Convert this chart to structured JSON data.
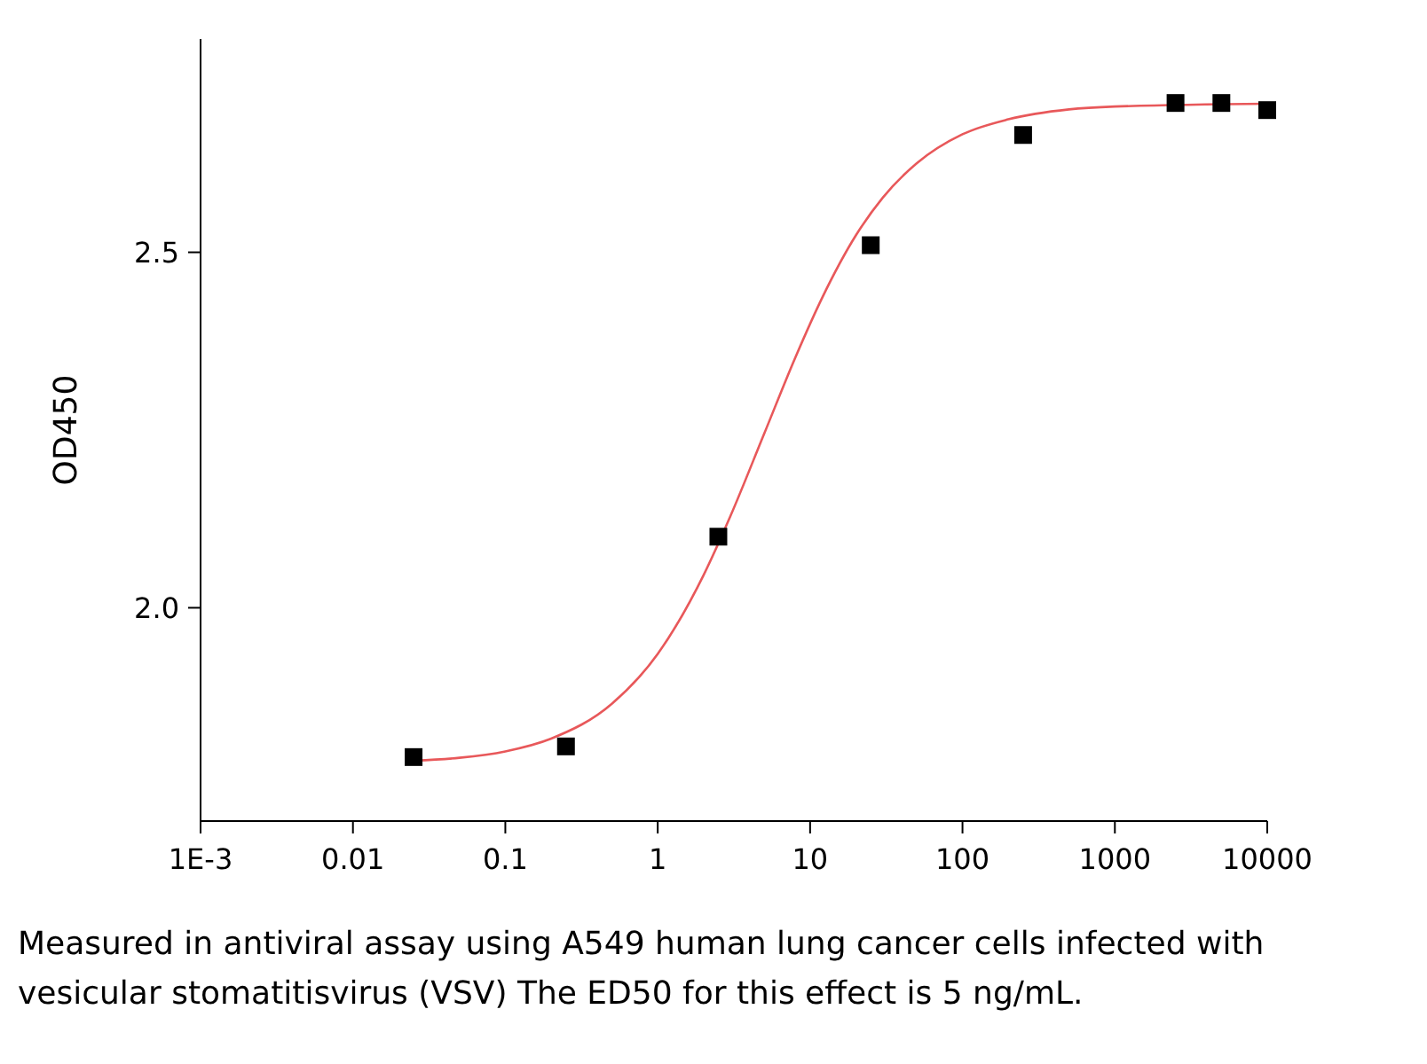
{
  "chart_data": {
    "type": "scatter",
    "ylabel": "OD450",
    "log": "x",
    "xlim": [
      0.001,
      10000
    ],
    "ylim": [
      1.7,
      2.8
    ],
    "xticks": [
      {
        "value": 0.001,
        "label": "1E-3"
      },
      0.01,
      0.1,
      1,
      10,
      100,
      1000,
      10000
    ],
    "yticks": [
      {
        "value": 2,
        "label": "2.0"
      },
      2.5
    ],
    "series": [
      {
        "marker": "square",
        "color": "#000000",
        "x": [
          0.025,
          0.25,
          2.5,
          25,
          250,
          2500,
          5000,
          10000
        ],
        "values": [
          1.79,
          1.805,
          2.1,
          2.51,
          2.665,
          2.71,
          2.71,
          2.7
        ]
      },
      {
        "type": "line",
        "color": "#e8585a",
        "x": [
          0.025,
          0.05,
          0.1,
          0.2,
          0.5,
          1,
          2,
          3,
          5,
          8,
          12,
          20,
          30,
          50,
          100,
          200,
          500,
          1000,
          10000
        ],
        "values": [
          1.785,
          1.789,
          1.798,
          1.816,
          1.865,
          1.935,
          2.046,
          2.129,
          2.245,
          2.352,
          2.436,
          2.524,
          2.577,
          2.625,
          2.666,
          2.687,
          2.701,
          2.705,
          2.709
        ]
      }
    ],
    "annotations": [
      "Measured in antiviral assay using A549 human lung cancer cells infected with vesicular stomatitisvirus (VSV) The ED50 for this effect is 5 ng/mL."
    ]
  }
}
